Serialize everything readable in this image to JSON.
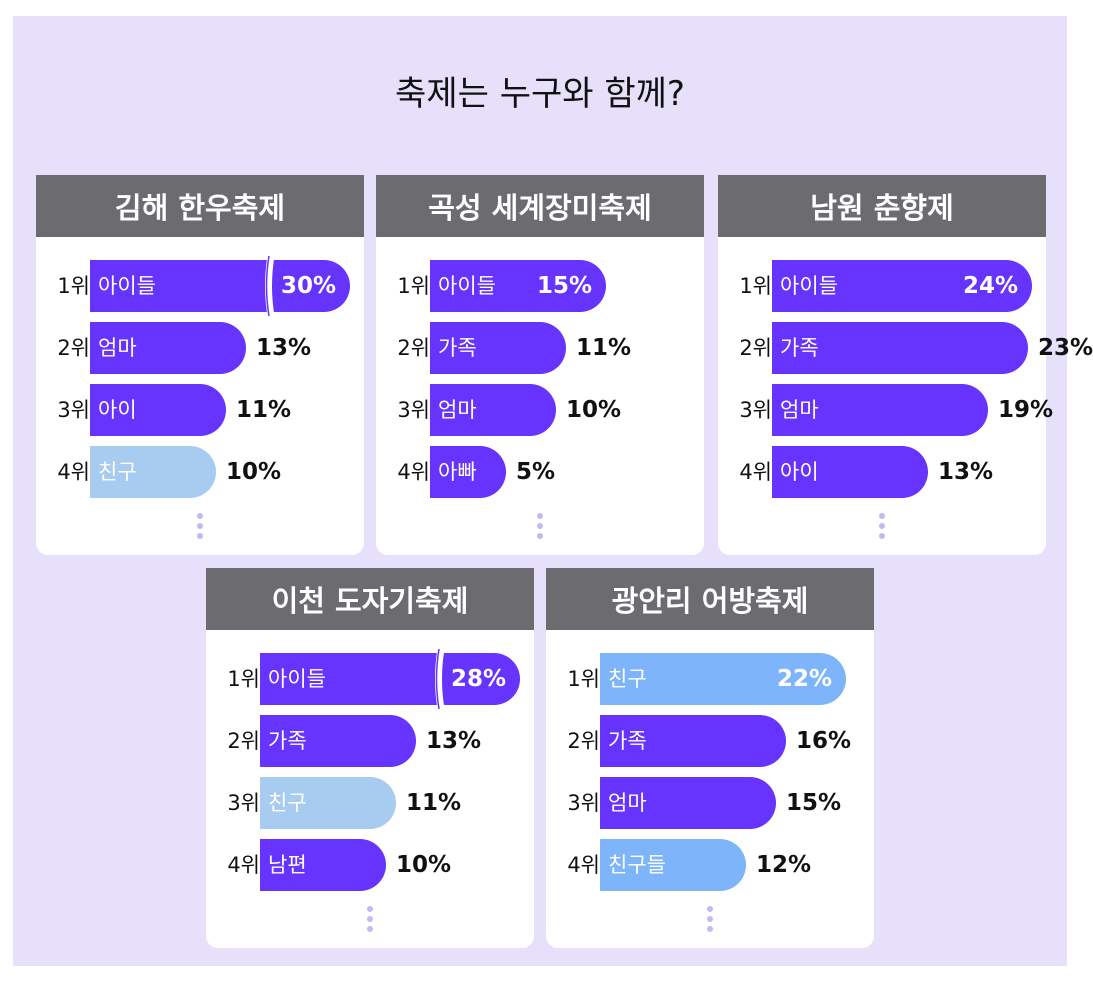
{
  "title": "축제는 누구와 함께?",
  "colors": {
    "background": "#e6e0fb",
    "header": "#6b6b70",
    "purple": "#6633ff",
    "light_blue": "#a8cbf0",
    "blue": "#7eb5fa",
    "dots": "#c3b8f2"
  },
  "chart_data": [
    {
      "type": "bar",
      "title": "김해 한우축제",
      "ranks": [
        "1위",
        "2위",
        "3위",
        "4위"
      ],
      "categories": [
        "아이들",
        "엄마",
        "아이",
        "친구"
      ],
      "values": [
        30,
        13,
        11,
        10
      ],
      "value_labels": [
        "30%",
        "13%",
        "11%",
        "10%"
      ],
      "bar_colors": [
        "#6633ff",
        "#6633ff",
        "#6633ff",
        "#a8cbf0"
      ],
      "axis_break_on_first": true
    },
    {
      "type": "bar",
      "title": "곡성 세계장미축제",
      "ranks": [
        "1위",
        "2위",
        "3위",
        "4위"
      ],
      "categories": [
        "아이들",
        "가족",
        "엄마",
        "아빠"
      ],
      "values": [
        15,
        11,
        10,
        5
      ],
      "value_labels": [
        "15%",
        "11%",
        "10%",
        "5%"
      ],
      "bar_colors": [
        "#6633ff",
        "#6633ff",
        "#6633ff",
        "#6633ff"
      ],
      "axis_break_on_first": false
    },
    {
      "type": "bar",
      "title": "남원 춘향제",
      "ranks": [
        "1위",
        "2위",
        "3위",
        "4위"
      ],
      "categories": [
        "아이들",
        "가족",
        "엄마",
        "아이"
      ],
      "values": [
        24,
        23,
        19,
        13
      ],
      "value_labels": [
        "24%",
        "23%",
        "19%",
        "13%"
      ],
      "bar_colors": [
        "#6633ff",
        "#6633ff",
        "#6633ff",
        "#6633ff"
      ],
      "axis_break_on_first": false
    },
    {
      "type": "bar",
      "title": "이천 도자기축제",
      "ranks": [
        "1위",
        "2위",
        "3위",
        "4위"
      ],
      "categories": [
        "아이들",
        "가족",
        "친구",
        "남편"
      ],
      "values": [
        28,
        13,
        11,
        10
      ],
      "value_labels": [
        "28%",
        "13%",
        "11%",
        "10%"
      ],
      "bar_colors": [
        "#6633ff",
        "#6633ff",
        "#a8cbf0",
        "#6633ff"
      ],
      "axis_break_on_first": true
    },
    {
      "type": "bar",
      "title": "광안리 어방축제",
      "ranks": [
        "1위",
        "2위",
        "3위",
        "4위"
      ],
      "categories": [
        "친구",
        "가족",
        "엄마",
        "친구들"
      ],
      "values": [
        22,
        16,
        15,
        12
      ],
      "value_labels": [
        "22%",
        "16%",
        "15%",
        "12%"
      ],
      "bar_colors": [
        "#7eb5fa",
        "#6633ff",
        "#6633ff",
        "#7eb5fa"
      ],
      "axis_break_on_first": false
    }
  ]
}
